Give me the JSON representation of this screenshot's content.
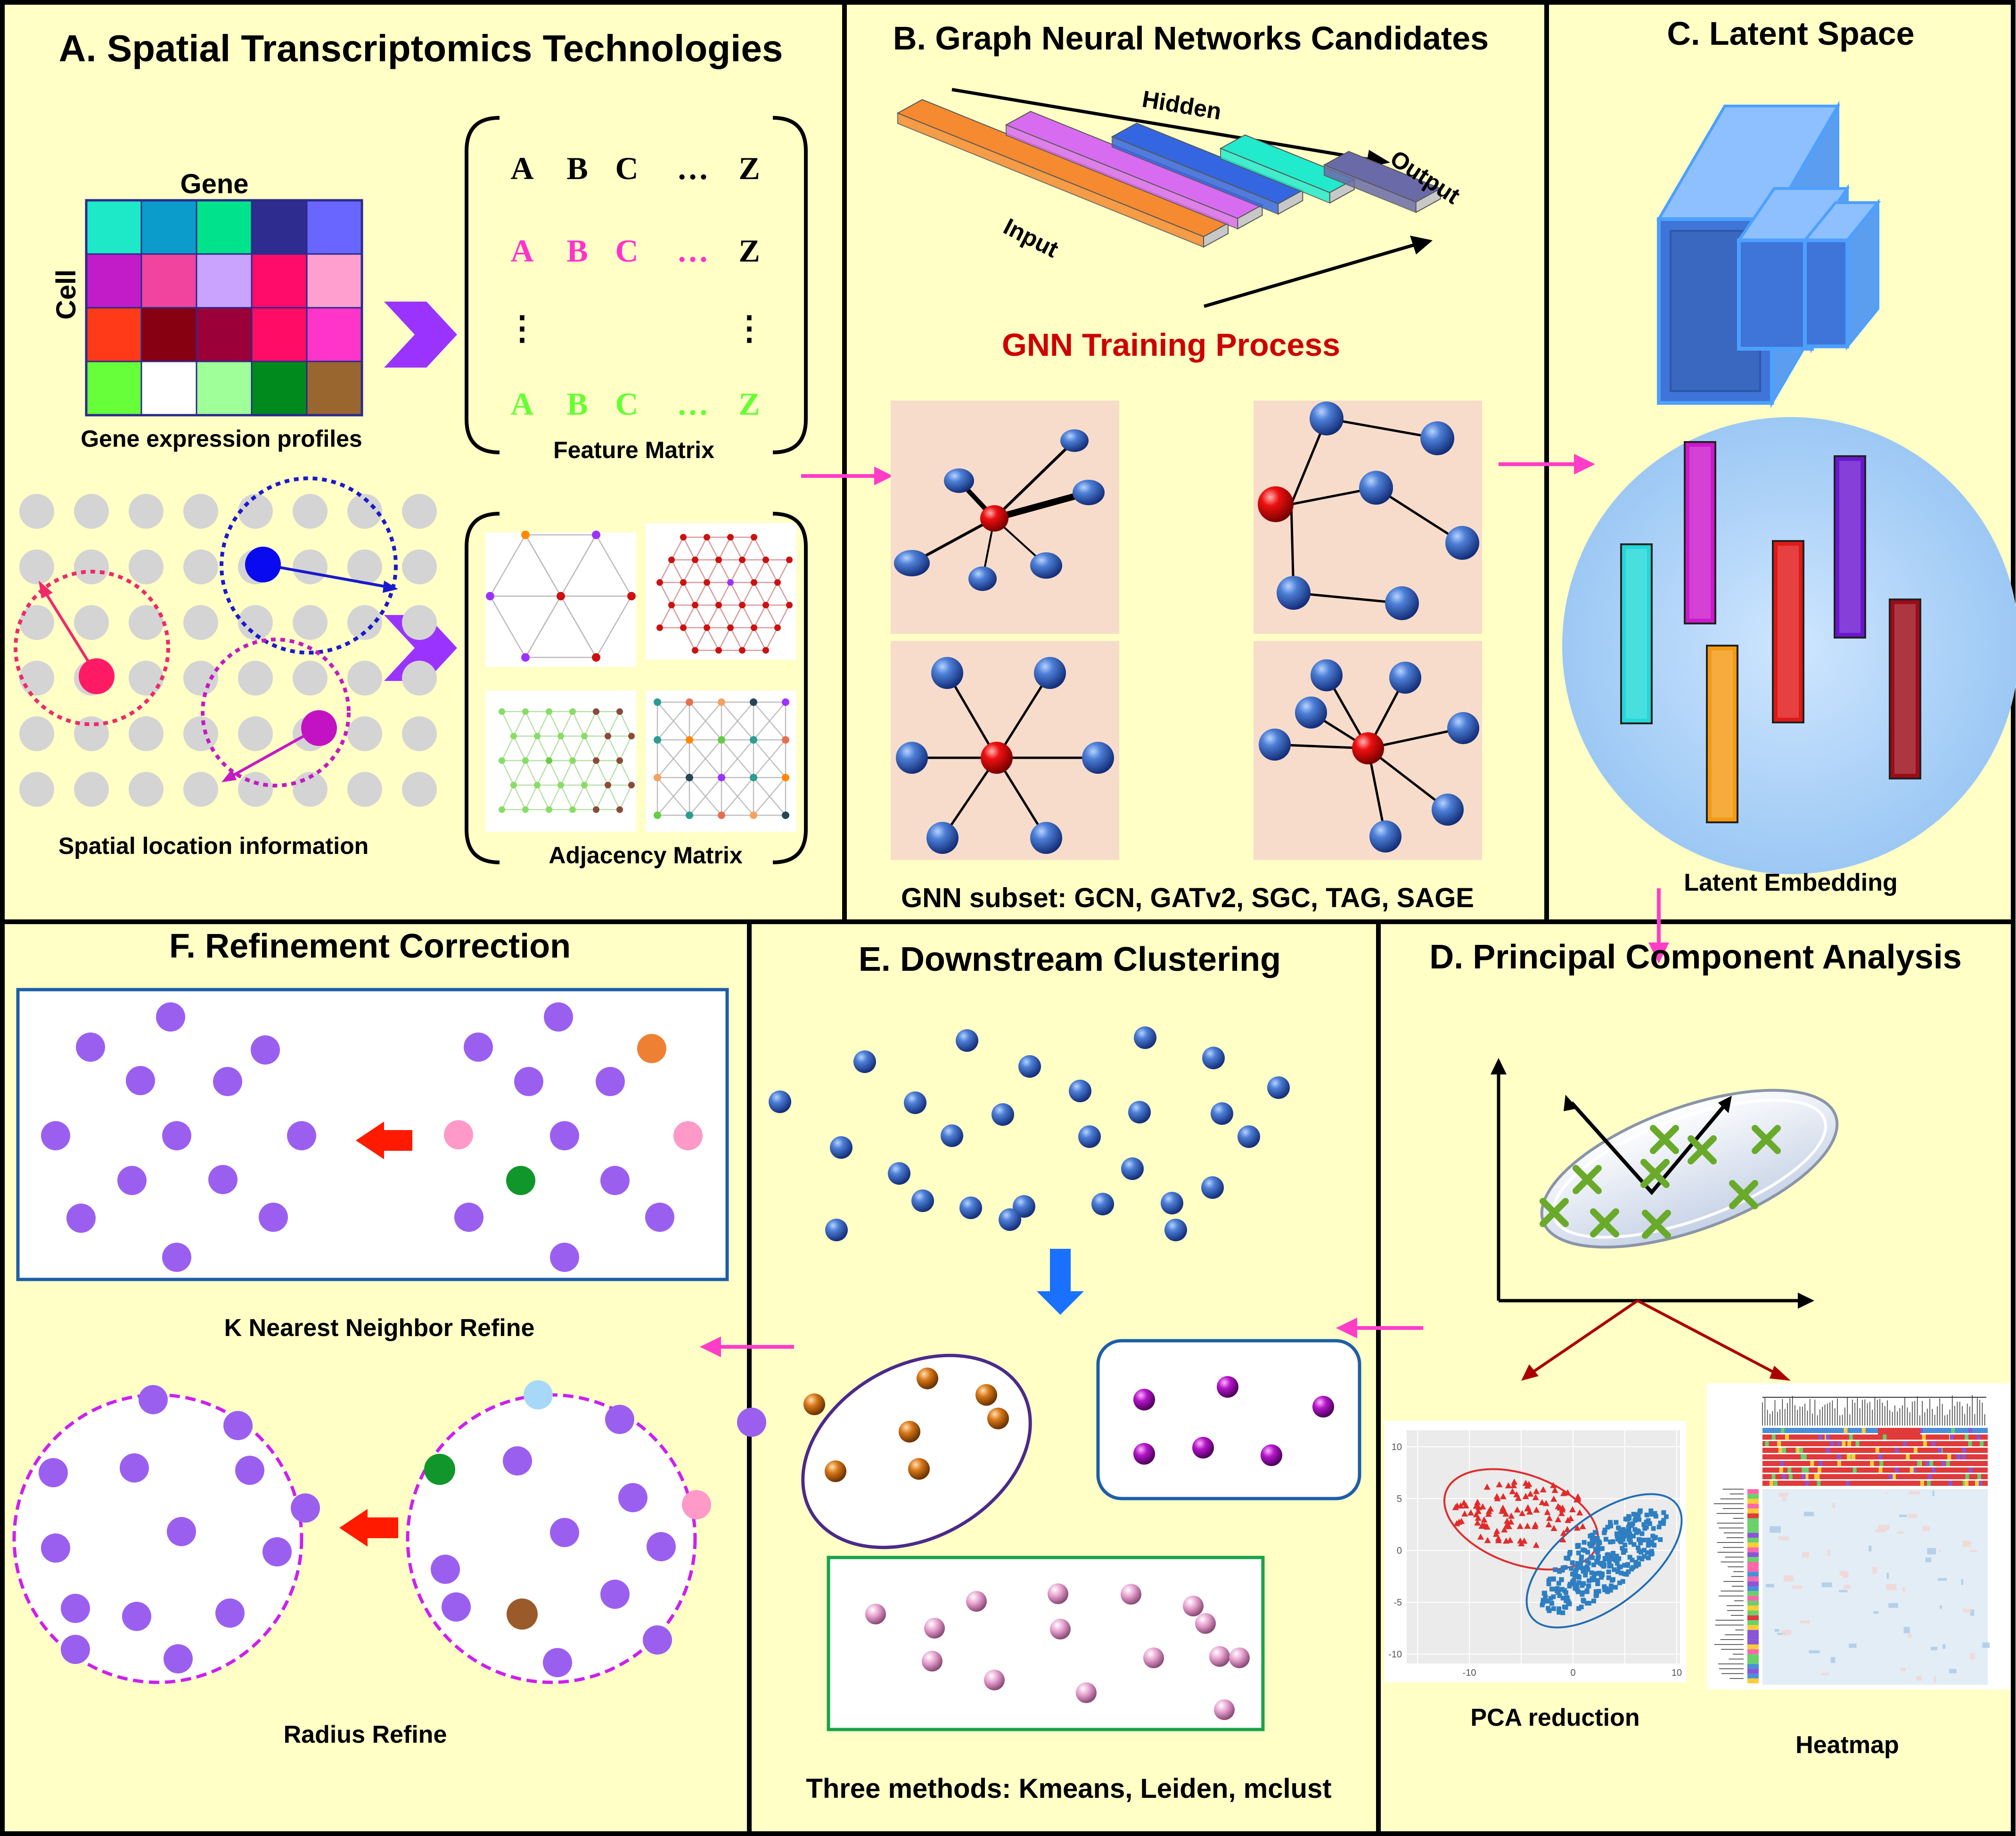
{
  "panels": {
    "a": {
      "title": "A. Spatial Transcriptomics Technologies",
      "gene_label": "Gene",
      "cell_label": "Cell",
      "gene_expression_label": "Gene expression profiles",
      "spatial_label": "Spatial location information",
      "feature_matrix_label": "Feature Matrix",
      "adjacency_matrix_label": "Adjacency Matrix",
      "matrix_letters": [
        "A",
        "B",
        "C",
        "…",
        "Z"
      ],
      "vdots": "⋮",
      "heatmap_colors": [
        [
          "#1de9c8",
          "#0b9ccc",
          "#00e38c",
          "#2e2d8f",
          "#6866ff"
        ],
        [
          "#c11cc8",
          "#f0449e",
          "#c9a3ff",
          "#ff0c6a",
          "#ff9fd0"
        ],
        [
          "#ff3a18",
          "#870012",
          "#9c0038",
          "#ff0c66",
          "#ff34c8"
        ],
        [
          "#66ff3a",
          "#ffffff",
          "#9fff99",
          "#008a1e",
          "#9a6630"
        ]
      ],
      "matrix_row_colors": [
        "#000000",
        "#ff33cc",
        "#000000",
        "#66ff33"
      ]
    },
    "b": {
      "title": "B. Graph Neural Networks Candidates",
      "hidden_label": "Hidden",
      "input_label": "Input",
      "output_label": "Output",
      "training_label": "GNN Training Process",
      "subset_label": "GNN subset: GCN, GATv2, SGC, TAG, SAGE",
      "layer_colors": [
        "#f58a30",
        "#d86cf0",
        "#3366e0",
        "#22eacc",
        "#6b6aa8"
      ]
    },
    "c": {
      "title": "C. Latent Space",
      "embedding_label": "Latent Embedding",
      "bar_colors": [
        "#23d8d8",
        "#cc18cc",
        "#f39a12",
        "#e01818",
        "#6a16d0",
        "#9c0c18"
      ]
    },
    "d": {
      "title": "D. Principal Component Analysis",
      "pca_label": "PCA reduction",
      "heatmap_label": "Heatmap",
      "x_ticks": [
        "-10",
        "0",
        "10"
      ],
      "y_ticks": [
        "10",
        "5",
        "0",
        "-5",
        "-10"
      ]
    },
    "e": {
      "title": "E. Downstream Clustering",
      "methods_label": "Three methods: Kmeans, Leiden, mclust"
    },
    "f": {
      "title": "F. Refinement Correction",
      "knn_label": "K Nearest Neighbor Refine",
      "radius_label": "Radius Refine"
    }
  },
  "colors": {
    "panel_bg": "#ffffc6",
    "pink_arrow": "#ff3dc8",
    "red_arrow": "#ff1a00",
    "purple_arrow": "#9b33ff",
    "title_red": "#cc0000",
    "dot_purple": "#9b5ff0"
  }
}
